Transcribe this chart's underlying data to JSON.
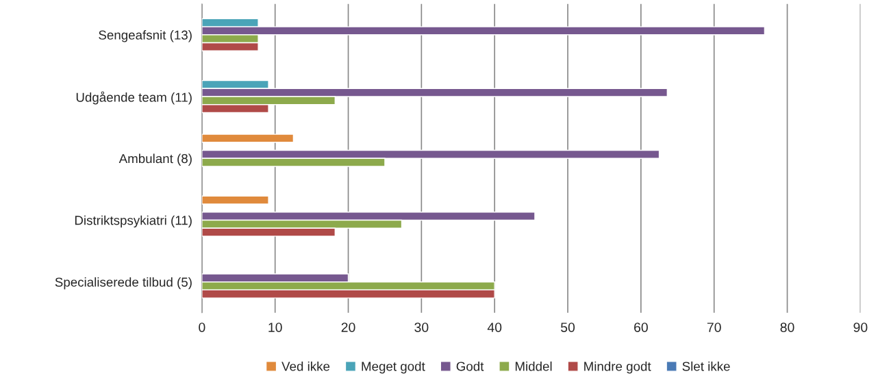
{
  "chart_data": {
    "type": "bar",
    "orientation": "horizontal",
    "categories": [
      "Sengeafsnit (13)",
      "Udgående team (11)",
      "Ambulant (8)",
      "Distriktspsykiatri (11)",
      "Specialiserede tilbud (5)"
    ],
    "series": [
      {
        "name": "Ved ikke",
        "color": "#e08a3c",
        "values": [
          null,
          null,
          12.5,
          9.1,
          null
        ]
      },
      {
        "name": "Meget godt",
        "color": "#4aa4b8",
        "values": [
          7.7,
          9.1,
          null,
          null,
          null
        ]
      },
      {
        "name": "Godt",
        "color": "#76588f",
        "values": [
          76.9,
          63.6,
          62.5,
          45.5,
          20
        ]
      },
      {
        "name": "Middel",
        "color": "#8daa4c",
        "values": [
          7.7,
          18.2,
          25,
          27.3,
          40
        ]
      },
      {
        "name": "Mindre godt",
        "color": "#b04a48",
        "values": [
          7.7,
          9.1,
          null,
          18.2,
          40
        ]
      },
      {
        "name": "Slet ikke",
        "color": "#4a7ab5",
        "values": [
          null,
          null,
          null,
          null,
          null
        ]
      }
    ],
    "xlim": [
      0,
      90
    ],
    "xticks": [
      0,
      10,
      20,
      30,
      40,
      50,
      60,
      70,
      80,
      90
    ],
    "grid": "x",
    "legend": "bottom"
  }
}
